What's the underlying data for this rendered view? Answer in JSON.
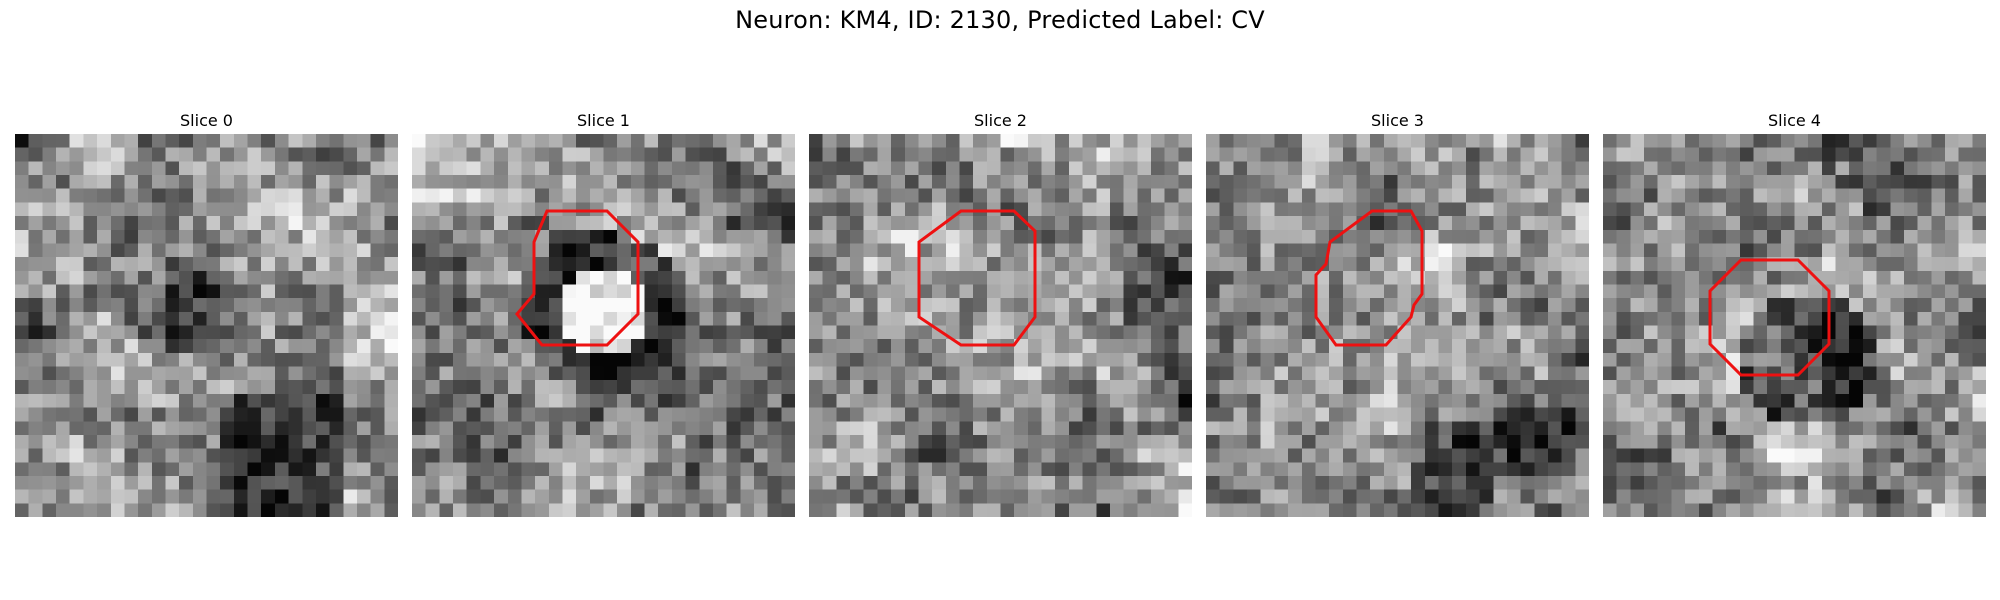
{
  "figure": {
    "title": "Neuron: KM4, ID: 2130, Predicted Label: CV",
    "contour_color": "#ee1111"
  },
  "panels": [
    {
      "label": "Slice 0",
      "has_contour": false,
      "seed": 11
    },
    {
      "label": "Slice 1",
      "has_contour": true,
      "seed": 23
    },
    {
      "label": "Slice 2",
      "has_contour": true,
      "seed": 37
    },
    {
      "label": "Slice 3",
      "has_contour": true,
      "seed": 41
    },
    {
      "label": "Slice 4",
      "has_contour": true,
      "seed": 53
    }
  ]
}
